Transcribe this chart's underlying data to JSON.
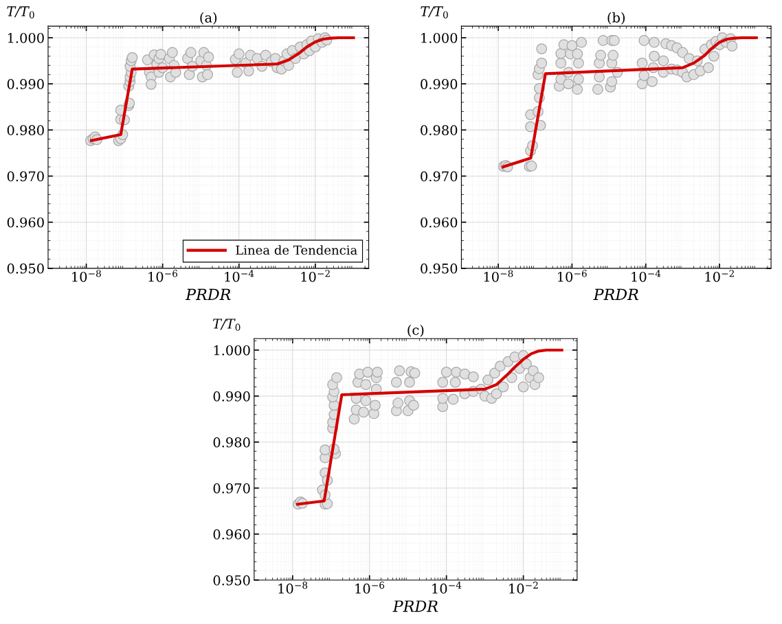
{
  "chart_data": [
    {
      "type": "scatter",
      "title": "(a)",
      "xlabel": "PRDR",
      "ylabel": "T/T$_{0}$",
      "log": "x",
      "grid": true,
      "legend": "bottom right",
      "xlim": [
        1e-09,
        0.25
      ],
      "ylim": [
        0.95,
        1.0025
      ],
      "xticks": [
        {
          "value": 1e-08,
          "label": "10$^{−8}$"
        },
        {
          "value": 1e-06,
          "label": "10$^{−6}$"
        },
        {
          "value": 0.0001,
          "label": "10$^{−4}$"
        },
        {
          "value": 0.01,
          "label": "10$^{−2}$"
        }
      ],
      "yticks": [
        {
          "value": 0.95,
          "label": "0.950"
        },
        {
          "value": 0.96,
          "label": "0.960"
        },
        {
          "value": 0.97,
          "label": "0.970"
        },
        {
          "value": 0.98,
          "label": "0.980"
        },
        {
          "value": 0.99,
          "label": "0.990"
        },
        {
          "value": 1.0,
          "label": "1.000"
        }
      ],
      "series": [
        {
          "marker": "circle",
          "color": "#e0e0e0",
          "x": [
            1.3e-08,
            1.5e-08,
            1.7e-08,
            1.9e-08,
            7e-08,
            8e-08,
            9e-08,
            8e-08,
            8e-08,
            1e-07,
            1.3e-07,
            1.35e-07,
            1.3e-07,
            1.4e-07,
            1.4e-07,
            1.5e-07,
            1.4e-07,
            1.5e-07,
            1.6e-07,
            4e-07,
            4.5e-07,
            5e-07,
            5e-07,
            6e-07,
            7e-07,
            8e-07,
            8e-07,
            9e-07,
            1e-06,
            1.5e-06,
            1.6e-06,
            1.8e-06,
            2e-06,
            2.2e-06,
            4.5e-06,
            5e-06,
            5.5e-06,
            6e-06,
            1e-05,
            1.1e-05,
            1.2e-05,
            1.4e-05,
            1.5e-05,
            1.6e-05,
            8e-05,
            9e-05,
            0.0001,
            0.00015,
            0.00018,
            0.0002,
            0.0003,
            0.0004,
            0.0005,
            0.0007,
            0.0009,
            0.001,
            0.0013,
            0.0015,
            0.0018,
            0.002,
            0.0025,
            0.003,
            0.004,
            0.005,
            0.006,
            0.007,
            0.008,
            0.01,
            0.012,
            0.015,
            0.018,
            0.02
          ],
          "values": [
            0.9777,
            0.9781,
            0.9785,
            0.9779,
            0.9777,
            0.9781,
            0.979,
            0.9823,
            0.9843,
            0.9822,
            0.9853,
            0.9858,
            0.9895,
            0.9905,
            0.9915,
            0.9925,
            0.9938,
            0.995,
            0.9957,
            0.9952,
            0.9925,
            0.9915,
            0.9899,
            0.9963,
            0.9942,
            0.9955,
            0.9925,
            0.9964,
            0.9935,
            0.9955,
            0.9915,
            0.9968,
            0.994,
            0.9925,
            0.9955,
            0.992,
            0.9968,
            0.9938,
            0.995,
            0.9915,
            0.9968,
            0.994,
            0.992,
            0.9958,
            0.9953,
            0.9925,
            0.9965,
            0.9945,
            0.9928,
            0.9962,
            0.9955,
            0.9938,
            0.9962,
            0.9948,
            0.9955,
            0.9935,
            0.9932,
            0.995,
            0.9965,
            0.994,
            0.9972,
            0.9955,
            0.998,
            0.9965,
            0.9985,
            0.9972,
            0.9993,
            0.998,
            0.9998,
            0.999,
            1.0,
            0.9995
          ]
        },
        {
          "type": "line",
          "name": "Linea de Tendencia",
          "color": "#d40000",
          "x": [
            1.36e-08,
            8e-08,
            1.6e-07,
            0.001,
            0.002,
            0.004,
            0.006,
            0.01,
            0.016,
            0.025,
            0.04,
            0.1
          ],
          "values": [
            0.9777,
            0.979,
            0.9932,
            0.9943,
            0.9952,
            0.9968,
            0.998,
            0.9991,
            0.9997,
            0.9999,
            1.0,
            1.0
          ]
        }
      ]
    },
    {
      "type": "scatter",
      "title": "(b)",
      "xlabel": "PRDR",
      "ylabel": "T/T$_{0}$",
      "log": "x",
      "grid": true,
      "xlim": [
        1e-09,
        0.25
      ],
      "ylim": [
        0.95,
        1.0025
      ],
      "xticks": [
        {
          "value": 1e-08,
          "label": "10$^{−8}$"
        },
        {
          "value": 1e-06,
          "label": "10$^{−6}$"
        },
        {
          "value": 0.0001,
          "label": "10$^{−4}$"
        },
        {
          "value": 0.01,
          "label": "10$^{−2}$"
        }
      ],
      "yticks": [
        {
          "value": 0.95,
          "label": "0.950"
        },
        {
          "value": 0.96,
          "label": "0.960"
        },
        {
          "value": 0.97,
          "label": "0.970"
        },
        {
          "value": 0.98,
          "label": "0.980"
        },
        {
          "value": 0.99,
          "label": "0.990"
        },
        {
          "value": 1.0,
          "label": "1.000"
        }
      ],
      "series": [
        {
          "marker": "circle",
          "color": "#e0e0e0",
          "x": [
            1.4e-08,
            1.6e-08,
            1.8e-08,
            7e-08,
            8e-08,
            7.5e-08,
            8.5e-08,
            7.5e-08,
            7.5e-08,
            1.4e-07,
            1.2e-07,
            1.3e-07,
            1.3e-07,
            1.2e-07,
            1.3e-07,
            1.5e-07,
            1.5e-07,
            4.5e-07,
            5e-07,
            5e-07,
            5e-07,
            6e-07,
            8e-07,
            8e-07,
            9e-07,
            1e-06,
            1.4e-06,
            1.5e-06,
            1.5e-06,
            1.4e-06,
            1.8e-06,
            5e-06,
            5.5e-06,
            5.5e-06,
            6e-06,
            7e-06,
            1.1e-05,
            1.2e-05,
            1.2e-05,
            1.3e-05,
            1.2e-05,
            1.4e-05,
            1.7e-05,
            8e-05,
            9e-05,
            8e-05,
            9e-05,
            0.00015,
            0.00016,
            0.00017,
            0.00017,
            0.0003,
            0.0003,
            0.00035,
            0.0005,
            0.0005,
            0.0007,
            0.0007,
            0.001,
            0.001,
            0.0013,
            0.0015,
            0.002,
            0.0025,
            0.003,
            0.004,
            0.005,
            0.006,
            0.007,
            0.008,
            0.01,
            0.012,
            0.015,
            0.02,
            0.022
          ],
          "values": [
            0.9721,
            0.9723,
            0.972,
            0.9721,
            0.9722,
            0.9755,
            0.9766,
            0.9807,
            0.9833,
            0.981,
            0.984,
            0.987,
            0.989,
            0.992,
            0.9933,
            0.9945,
            0.9976,
            0.9895,
            0.991,
            0.9945,
            0.9966,
            0.9985,
            0.99,
            0.9925,
            0.9965,
            0.9983,
            0.9888,
            0.991,
            0.9945,
            0.9965,
            0.999,
            0.9888,
            0.9915,
            0.9945,
            0.9962,
            0.9994,
            0.9893,
            0.9905,
            0.9945,
            0.9962,
            0.9994,
            0.9994,
            0.9925,
            0.99,
            0.9918,
            0.9945,
            0.9994,
            0.9905,
            0.9935,
            0.996,
            0.999,
            0.9925,
            0.995,
            0.9987,
            0.9932,
            0.9983,
            0.993,
            0.9978,
            0.9925,
            0.9968,
            0.9915,
            0.9955,
            0.992,
            0.995,
            0.9928,
            0.9975,
            0.9935,
            0.9985,
            0.996,
            0.9992,
            0.9985,
            1.0,
            0.999,
            0.9998,
            0.9982
          ]
        },
        {
          "type": "line",
          "color": "#d40000",
          "x": [
            1.35e-08,
            7.6e-08,
            1.9e-07,
            0.001,
            0.002,
            0.004,
            0.006,
            0.01,
            0.016,
            0.025,
            0.04,
            0.1
          ],
          "values": [
            0.972,
            0.9739,
            0.9922,
            0.9935,
            0.9945,
            0.9962,
            0.9976,
            0.999,
            0.9997,
            0.9999,
            1.0,
            1.0
          ]
        }
      ]
    },
    {
      "type": "scatter",
      "title": "(c)",
      "xlabel": "PRDR",
      "ylabel": "T/T$_{0}$",
      "log": "x",
      "grid": true,
      "xlim": [
        1e-09,
        0.25
      ],
      "ylim": [
        0.95,
        1.0025
      ],
      "xticks": [
        {
          "value": 1e-08,
          "label": "10$^{−8}$"
        },
        {
          "value": 1e-06,
          "label": "10$^{−6}$"
        },
        {
          "value": 0.0001,
          "label": "10$^{−4}$"
        },
        {
          "value": 0.01,
          "label": "10$^{−2}$"
        }
      ],
      "yticks": [
        {
          "value": 0.95,
          "label": "0.950"
        },
        {
          "value": 0.96,
          "label": "0.960"
        },
        {
          "value": 0.97,
          "label": "0.970"
        },
        {
          "value": 0.98,
          "label": "0.980"
        },
        {
          "value": 0.99,
          "label": "0.990"
        },
        {
          "value": 1.0,
          "label": "1.000"
        }
      ],
      "series": [
        {
          "marker": "circle",
          "color": "#e0e0e0",
          "x": [
            1.4e-08,
            1.6e-08,
            1.8e-08,
            6e-08,
            7e-08,
            8e-08,
            7e-08,
            7e-08,
            8e-08,
            7e-08,
            7e-08,
            1.3e-07,
            1.2e-07,
            1.1e-07,
            1.1e-07,
            1.2e-07,
            1.2e-07,
            1.1e-07,
            1.2e-07,
            1.1e-07,
            1.4e-07,
            4e-07,
            4.5e-07,
            4.5e-07,
            5e-07,
            5.5e-07,
            7e-07,
            8e-07,
            8e-07,
            9e-07,
            1.3e-06,
            1.4e-06,
            1.5e-06,
            1.5e-06,
            1.6e-06,
            5e-06,
            5.5e-06,
            5e-06,
            6e-06,
            1e-05,
            1.1e-05,
            1.1e-05,
            1.2e-05,
            1.4e-05,
            1.5e-05,
            8e-05,
            8e-05,
            8e-05,
            0.0001,
            0.00015,
            0.00017,
            0.00018,
            0.0003,
            0.0003,
            0.0005,
            0.0005,
            0.0008,
            0.001,
            0.0012,
            0.0015,
            0.0018,
            0.002,
            0.0025,
            0.003,
            0.004,
            0.005,
            0.006,
            0.008,
            0.01,
            0.01,
            0.012,
            0.015,
            0.018,
            0.02,
            0.025
          ],
          "values": [
            0.9665,
            0.967,
            0.9667,
            0.9696,
            0.9665,
            0.9666,
            0.9685,
            0.9733,
            0.9717,
            0.9766,
            0.9783,
            0.9775,
            0.9785,
            0.983,
            0.9843,
            0.986,
            0.988,
            0.9898,
            0.991,
            0.9925,
            0.994,
            0.985,
            0.987,
            0.9895,
            0.993,
            0.9948,
            0.9865,
            0.989,
            0.9925,
            0.9952,
            0.9862,
            0.988,
            0.9915,
            0.994,
            0.9952,
            0.9868,
            0.9885,
            0.993,
            0.9955,
            0.9868,
            0.989,
            0.993,
            0.9953,
            0.988,
            0.995,
            0.9877,
            0.9895,
            0.993,
            0.9952,
            0.9893,
            0.993,
            0.9952,
            0.9905,
            0.9948,
            0.991,
            0.9942,
            0.9915,
            0.99,
            0.9935,
            0.9895,
            0.995,
            0.9905,
            0.9965,
            0.992,
            0.9975,
            0.994,
            0.9985,
            0.996,
            0.9988,
            0.992,
            0.997,
            0.994,
            0.9955,
            0.9925,
            0.994
          ]
        },
        {
          "type": "line",
          "color": "#d40000",
          "x": [
            1.35e-08,
            6.6e-08,
            1.9e-07,
            0.001,
            0.002,
            0.004,
            0.006,
            0.01,
            0.016,
            0.025,
            0.04,
            0.1
          ],
          "values": [
            0.9665,
            0.9672,
            0.9903,
            0.9915,
            0.9925,
            0.9948,
            0.9963,
            0.998,
            0.9992,
            0.9998,
            1.0,
            1.0
          ]
        }
      ]
    }
  ]
}
